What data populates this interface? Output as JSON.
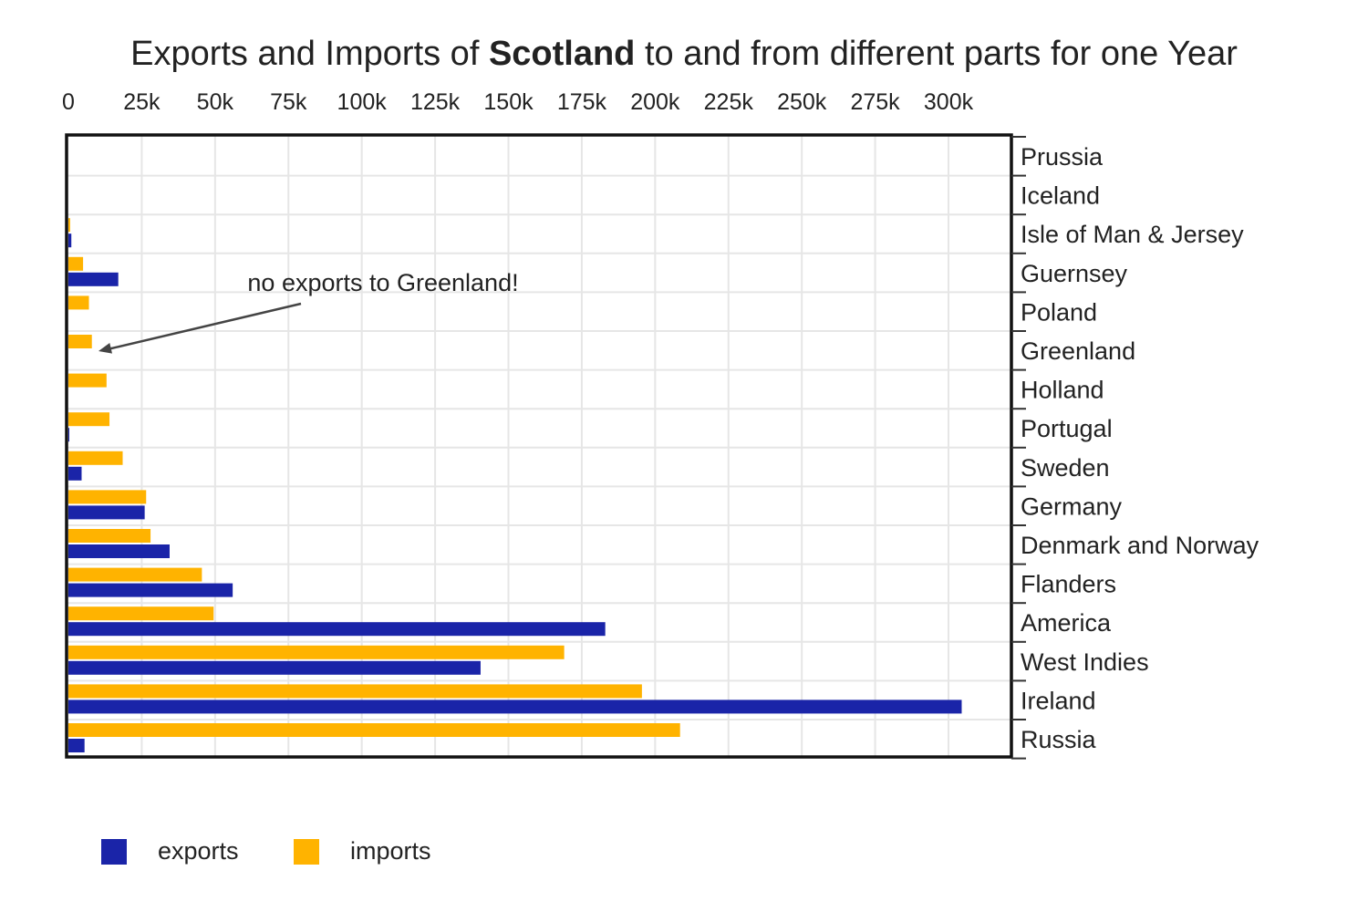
{
  "chart_data": {
    "type": "bar",
    "orientation": "horizontal",
    "title": {
      "prefix": "Exports and Imports of ",
      "bold": "Scotland",
      "suffix": " to and from different parts for one Year"
    },
    "xlim": [
      0,
      320000
    ],
    "x_ticks": [
      {
        "value": 0,
        "label": "0"
      },
      {
        "value": 25000,
        "label": "25k"
      },
      {
        "value": 50000,
        "label": "50k"
      },
      {
        "value": 75000,
        "label": "75k"
      },
      {
        "value": 100000,
        "label": "100k"
      },
      {
        "value": 125000,
        "label": "125k"
      },
      {
        "value": 150000,
        "label": "150k"
      },
      {
        "value": 175000,
        "label": "175k"
      },
      {
        "value": 200000,
        "label": "200k"
      },
      {
        "value": 225000,
        "label": "225k"
      },
      {
        "value": 250000,
        "label": "250k"
      },
      {
        "value": 275000,
        "label": "275k"
      },
      {
        "value": 300000,
        "label": "300k"
      }
    ],
    "x_axis_position": "top",
    "y_axis_position": "right",
    "grid": true,
    "categories": [
      "Prussia",
      "Iceland",
      "Isle of Man & Jersey",
      "Guernsey",
      "Poland",
      "Greenland",
      "Holland",
      "Portugal",
      "Sweden",
      "Germany",
      "Denmark and Norway",
      "Flanders",
      "America",
      "West Indies",
      "Ireland",
      "Russia"
    ],
    "series": [
      {
        "name": "exports",
        "color": "#1a24a8",
        "values": [
          0,
          0,
          1000,
          17000,
          0,
          0,
          0,
          200,
          4500,
          26000,
          34500,
          56000,
          183000,
          140500,
          304500,
          5500
        ]
      },
      {
        "name": "imports",
        "color": "#ffb300",
        "values": [
          0,
          0,
          600,
          5000,
          7000,
          8000,
          13000,
          14000,
          18500,
          26500,
          28000,
          45500,
          49500,
          169000,
          195500,
          208500
        ]
      }
    ],
    "annotation": {
      "text": "no exports to Greenland!",
      "target_category": "Greenland"
    },
    "legend_placement": "bottom-left"
  }
}
